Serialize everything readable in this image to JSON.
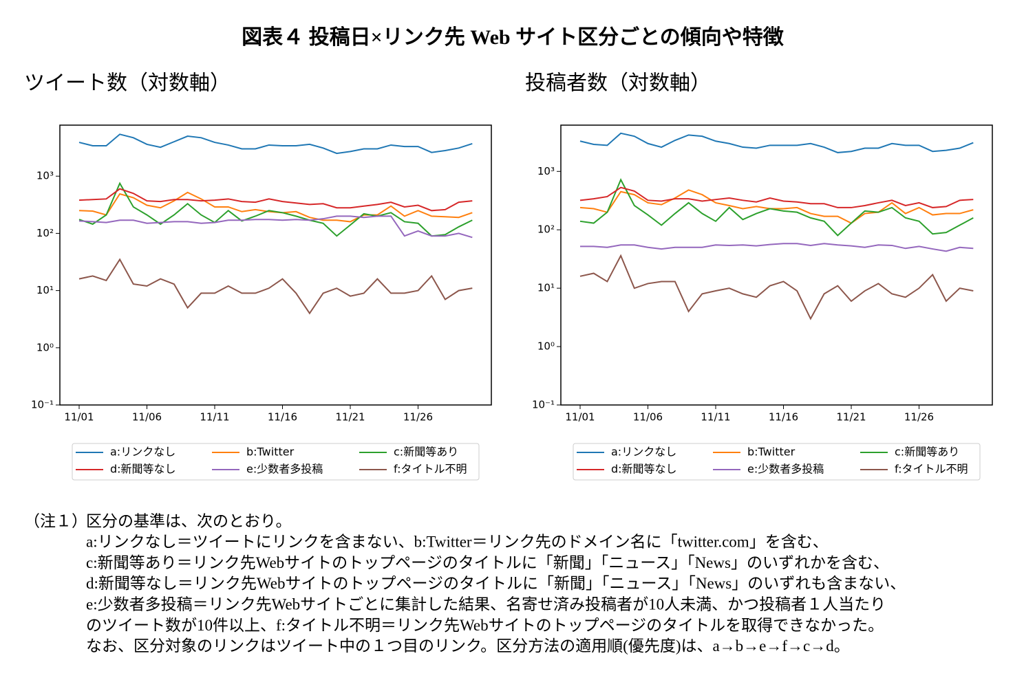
{
  "title": "図表４ 投稿日×リンク先 Web サイト区分ごとの傾向や特徴",
  "chart_data": [
    {
      "type": "line",
      "title": "ツイート数（対数軸）",
      "yscale": "log",
      "legend": "below",
      "categories": [
        "11/01",
        null,
        null,
        null,
        null,
        "11/06",
        null,
        null,
        null,
        null,
        "11/11",
        null,
        null,
        null,
        null,
        "11/16",
        null,
        null,
        null,
        null,
        "11/21",
        null,
        null,
        null,
        null,
        "11/26",
        null,
        null,
        null,
        null
      ],
      "ylim": [
        0.1,
        7800
      ],
      "yticks": [
        {
          "value": 0.1,
          "label": "10⁻¹"
        },
        {
          "value": 1,
          "label": "10⁰"
        },
        {
          "value": 10,
          "label": "10¹"
        },
        {
          "value": 100,
          "label": "10²"
        },
        {
          "value": 1000,
          "label": "10³"
        }
      ],
      "series": [
        {
          "name": "a:リンクなし",
          "color": "#1f77b4",
          "values": [
            3900,
            3400,
            3400,
            5400,
            4700,
            3600,
            3200,
            4000,
            5000,
            4700,
            3900,
            3500,
            3000,
            3000,
            3500,
            3400,
            3400,
            3600,
            3100,
            2500,
            2700,
            3000,
            3000,
            3500,
            3300,
            3300,
            2600,
            2800,
            3100,
            3700
          ]
        },
        {
          "name": "b:Twitter",
          "color": "#ff7f0e",
          "values": [
            250,
            245,
            210,
            490,
            420,
            310,
            280,
            370,
            520,
            400,
            290,
            290,
            240,
            260,
            240,
            230,
            240,
            190,
            170,
            170,
            160,
            210,
            210,
            300,
            200,
            250,
            200,
            195,
            190,
            230
          ]
        },
        {
          "name": "c:新聞等あり",
          "color": "#2ca02c",
          "values": [
            175,
            145,
            210,
            750,
            290,
            210,
            145,
            210,
            330,
            210,
            155,
            250,
            165,
            200,
            250,
            230,
            200,
            170,
            150,
            90,
            140,
            220,
            200,
            230,
            160,
            150,
            90,
            95,
            130,
            170
          ]
        },
        {
          "name": "d:新聞等なし",
          "color": "#d62728",
          "values": [
            380,
            390,
            400,
            600,
            500,
            370,
            360,
            390,
            390,
            370,
            380,
            400,
            360,
            350,
            400,
            360,
            340,
            320,
            330,
            280,
            280,
            300,
            320,
            350,
            290,
            310,
            250,
            260,
            350,
            370
          ]
        },
        {
          "name": "e:少数者多投稿",
          "color": "#9467bd",
          "values": [
            165,
            160,
            155,
            170,
            170,
            150,
            155,
            160,
            160,
            150,
            155,
            170,
            170,
            175,
            175,
            170,
            175,
            170,
            180,
            200,
            200,
            190,
            200,
            200,
            90,
            110,
            90,
            90,
            100,
            85
          ]
        },
        {
          "name": "f:タイトル不明",
          "color": "#8c564b",
          "values": [
            16,
            18,
            15,
            35,
            13,
            12,
            16,
            13,
            5,
            9,
            9,
            12,
            9,
            9,
            11,
            16,
            9,
            4,
            9,
            11,
            8,
            9,
            16,
            9,
            9,
            10,
            18,
            7,
            10,
            11
          ]
        }
      ]
    },
    {
      "type": "line",
      "title": "投稿者数（対数軸）",
      "yscale": "log",
      "legend": "below",
      "categories": [
        "11/01",
        null,
        null,
        null,
        null,
        "11/06",
        null,
        null,
        null,
        null,
        "11/11",
        null,
        null,
        null,
        null,
        "11/16",
        null,
        null,
        null,
        null,
        "11/21",
        null,
        null,
        null,
        null,
        "11/26",
        null,
        null,
        null,
        null
      ],
      "ylim": [
        0.1,
        6200
      ],
      "yticks": [
        {
          "value": 0.1,
          "label": "10⁻¹"
        },
        {
          "value": 1,
          "label": "10⁰"
        },
        {
          "value": 10,
          "label": "10¹"
        },
        {
          "value": 100,
          "label": "10²"
        },
        {
          "value": 1000,
          "label": "10³"
        }
      ],
      "series": [
        {
          "name": "a:リンクなし",
          "color": "#1f77b4",
          "values": [
            3300,
            2900,
            2800,
            4500,
            4000,
            3000,
            2600,
            3400,
            4200,
            4000,
            3300,
            3000,
            2600,
            2500,
            2800,
            2800,
            2800,
            3000,
            2600,
            2100,
            2200,
            2500,
            2500,
            3000,
            2800,
            2800,
            2200,
            2300,
            2500,
            3100
          ]
        },
        {
          "name": "b:Twitter",
          "color": "#ff7f0e",
          "values": [
            240,
            230,
            200,
            450,
            400,
            290,
            270,
            350,
            480,
            400,
            290,
            260,
            230,
            250,
            230,
            230,
            240,
            190,
            170,
            170,
            130,
            190,
            200,
            290,
            190,
            240,
            180,
            190,
            190,
            220
          ]
        },
        {
          "name": "c:新聞等あり",
          "color": "#2ca02c",
          "values": [
            140,
            130,
            200,
            720,
            260,
            180,
            120,
            190,
            290,
            190,
            140,
            240,
            150,
            190,
            230,
            210,
            200,
            160,
            140,
            80,
            130,
            210,
            200,
            240,
            160,
            140,
            85,
            90,
            120,
            160
          ]
        },
        {
          "name": "d:新聞等なし",
          "color": "#d62728",
          "values": [
            320,
            340,
            370,
            530,
            460,
            320,
            310,
            340,
            340,
            310,
            330,
            350,
            320,
            300,
            350,
            310,
            300,
            280,
            280,
            240,
            240,
            260,
            290,
            320,
            260,
            290,
            240,
            250,
            320,
            330
          ]
        },
        {
          "name": "e:少数者多投稿",
          "color": "#9467bd",
          "values": [
            52,
            52,
            50,
            55,
            55,
            50,
            47,
            50,
            50,
            50,
            55,
            54,
            55,
            53,
            56,
            58,
            58,
            54,
            58,
            55,
            53,
            50,
            55,
            54,
            48,
            52,
            47,
            43,
            50,
            48
          ]
        },
        {
          "name": "f:タイトル不明",
          "color": "#8c564b",
          "values": [
            16,
            18,
            13,
            36,
            10,
            12,
            13,
            13,
            4,
            8,
            9,
            10,
            8,
            7,
            11,
            13,
            9,
            3,
            8,
            11,
            6,
            9,
            12,
            8,
            7,
            10,
            17,
            6,
            10,
            9
          ]
        }
      ]
    }
  ],
  "notes": {
    "label": "（注１）",
    "lines": [
      "区分の基準は、次のとおり。",
      "a:リンクなし＝ツイートにリンクを含まない、b:Twitter＝リンク先のドメイン名に「twitter.com」を含む、",
      "c:新聞等あり＝リンク先Webサイトのトップページのタイトルに「新聞」「ニュース」「News」のいずれかを含む、",
      "d:新聞等なし＝リンク先Webサイトのトップページのタイトルに「新聞」「ニュース」「News」のいずれも含まない、",
      "e:少数者多投稿＝リンク先Webサイトごとに集計した結果、名寄せ済み投稿者が10人未満、かつ投稿者１人当たり",
      "のツイート数が10件以上、f:タイトル不明＝リンク先Webサイトのトップページのタイトルを取得できなかった。",
      "なお、区分対象のリンクはツイート中の１つ目のリンク。区分方法の適用順(優先度)は、a→b→e→f→c→d。"
    ]
  }
}
